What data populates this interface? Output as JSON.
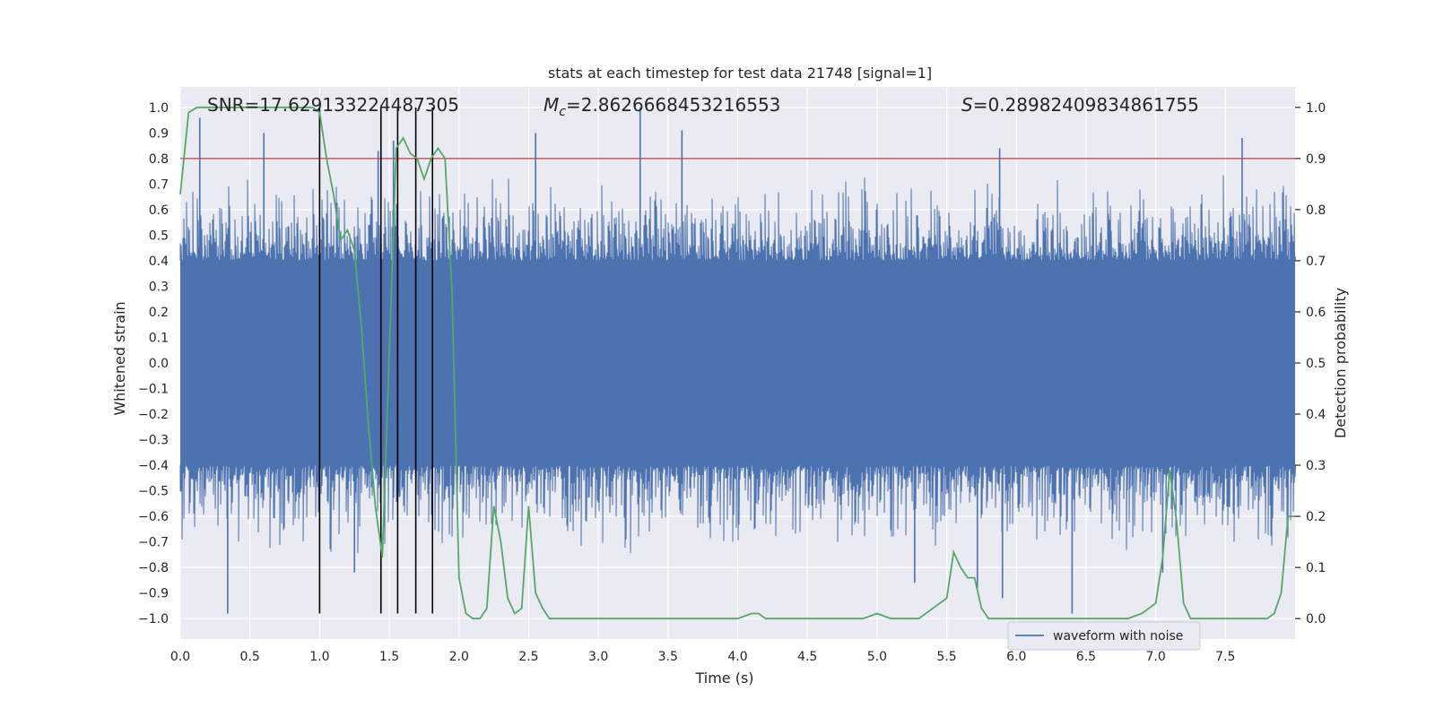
{
  "chart_data": {
    "type": "line",
    "title": "stats at each timestep for test data 21748 [signal=1]",
    "xlabel": "Time (s)",
    "ylabel_left": "Whitened strain",
    "ylabel_right": "Detection probability",
    "xlim": [
      0.0,
      8.0
    ],
    "ylim_left": [
      -1.08,
      1.08
    ],
    "ylim_right": [
      -0.04,
      1.04
    ],
    "x_ticks": [
      0.0,
      0.5,
      1.0,
      1.5,
      2.0,
      2.5,
      3.0,
      3.5,
      4.0,
      4.5,
      5.0,
      5.5,
      6.0,
      6.5,
      7.0,
      7.5
    ],
    "x_tick_labels": [
      "0.0",
      "0.5",
      "1.0",
      "1.5",
      "2.0",
      "2.5",
      "3.0",
      "3.5",
      "4.0",
      "4.5",
      "5.0",
      "5.5",
      "6.0",
      "6.5",
      "7.0",
      "7.5"
    ],
    "y_left_ticks": [
      1.0,
      0.9,
      0.8,
      0.7,
      0.6,
      0.5,
      0.4,
      0.3,
      0.2,
      0.1,
      0.0,
      -0.1,
      -0.2,
      -0.3,
      -0.4,
      -0.5,
      -0.6,
      -0.7,
      -0.8,
      -0.9,
      -1.0
    ],
    "y_left_tick_labels": [
      "1.0",
      "0.9",
      "0.8",
      "0.7",
      "0.6",
      "0.5",
      "0.4",
      "0.3",
      "0.2",
      "0.1",
      "0.0",
      "−0.1",
      "−0.2",
      "−0.3",
      "−0.4",
      "−0.5",
      "−0.6",
      "−0.7",
      "−0.8",
      "−0.9",
      "−1.0"
    ],
    "y_right_ticks": [
      1.0,
      0.9,
      0.8,
      0.7,
      0.6,
      0.5,
      0.4,
      0.3,
      0.2,
      0.1,
      0.0
    ],
    "y_right_tick_labels": [
      "1.0",
      "0.9",
      "0.8",
      "0.7",
      "0.6",
      "0.5",
      "0.4",
      "0.3",
      "0.2",
      "0.1",
      "0.0"
    ],
    "annotations": {
      "snr": "SNR=17.629133224487305",
      "mc_prefix": "M",
      "mc_sub": "c",
      "mc_value": "=2.8626668453216553",
      "s_prefix": "S",
      "s_value": "=0.28982409834861755"
    },
    "threshold_line": {
      "axis": "left",
      "y": 0.8,
      "color": "#c44e52"
    },
    "vertical_markers": [
      {
        "x": 1.0,
        "ymin": -0.98,
        "ymax": 1.0
      },
      {
        "x": 1.44,
        "ymin": -0.98,
        "ymax": 1.0
      },
      {
        "x": 1.56,
        "ymin": -0.98,
        "ymax": 1.0
      },
      {
        "x": 1.69,
        "ymin": -0.98,
        "ymax": 1.0
      },
      {
        "x": 1.81,
        "ymin": -0.98,
        "ymax": 1.0
      }
    ],
    "series": [
      {
        "name": "waveform with noise",
        "axis": "left",
        "color": "#4c72b0",
        "kind": "noise",
        "band": 0.4,
        "typical_peak": 0.62,
        "spikes": [
          {
            "x": 0.14,
            "y": 0.96
          },
          {
            "x": 0.6,
            "y": 0.9
          },
          {
            "x": 1.42,
            "y": 0.83
          },
          {
            "x": 1.53,
            "y": 0.87
          },
          {
            "x": 2.55,
            "y": 0.9
          },
          {
            "x": 3.3,
            "y": 1.0
          },
          {
            "x": 3.6,
            "y": 0.91
          },
          {
            "x": 5.88,
            "y": 0.84
          },
          {
            "x": 7.62,
            "y": 0.88
          },
          {
            "x": 0.34,
            "y": -0.98
          },
          {
            "x": 1.25,
            "y": -0.82
          },
          {
            "x": 5.27,
            "y": -0.86
          },
          {
            "x": 5.72,
            "y": -0.88
          },
          {
            "x": 5.9,
            "y": -0.92
          },
          {
            "x": 6.4,
            "y": -0.98
          },
          {
            "x": 7.05,
            "y": -0.82
          }
        ]
      },
      {
        "name": "detection probability",
        "axis": "right",
        "color": "#55a868",
        "x": [
          0.0,
          0.06,
          0.12,
          0.5,
          0.95,
          1.0,
          1.05,
          1.1,
          1.15,
          1.2,
          1.25,
          1.3,
          1.35,
          1.4,
          1.45,
          1.5,
          1.55,
          1.6,
          1.65,
          1.7,
          1.75,
          1.8,
          1.85,
          1.9,
          1.95,
          2.0,
          2.05,
          2.1,
          2.15,
          2.2,
          2.25,
          2.3,
          2.35,
          2.4,
          2.45,
          2.5,
          2.55,
          2.6,
          2.65,
          2.7,
          2.8,
          2.9,
          3.0,
          3.1,
          3.2,
          3.3,
          3.4,
          3.5,
          3.7,
          3.9,
          4.0,
          4.1,
          4.15,
          4.2,
          4.3,
          4.4,
          4.5,
          4.6,
          4.8,
          4.9,
          5.0,
          5.1,
          5.3,
          5.4,
          5.5,
          5.55,
          5.6,
          5.65,
          5.7,
          5.75,
          5.8,
          5.85,
          5.9,
          6.0,
          6.5,
          6.8,
          6.9,
          6.95,
          7.0,
          7.05,
          7.1,
          7.15,
          7.2,
          7.25,
          7.3,
          7.5,
          7.7,
          7.8,
          7.85,
          7.9,
          7.95,
          8.0
        ],
        "y": [
          0.83,
          0.99,
          1.0,
          1.0,
          1.0,
          0.99,
          0.9,
          0.83,
          0.74,
          0.76,
          0.72,
          0.57,
          0.38,
          0.22,
          0.12,
          0.52,
          0.92,
          0.94,
          0.91,
          0.9,
          0.86,
          0.9,
          0.92,
          0.9,
          0.64,
          0.08,
          0.01,
          0.0,
          0.0,
          0.02,
          0.22,
          0.15,
          0.04,
          0.01,
          0.02,
          0.22,
          0.05,
          0.02,
          0.0,
          0.0,
          0.0,
          0.0,
          0.0,
          0.0,
          0.0,
          0.0,
          0.0,
          0.0,
          0.0,
          0.0,
          0.0,
          0.01,
          0.01,
          0.0,
          0.0,
          0.0,
          0.0,
          0.0,
          0.0,
          0.0,
          0.01,
          0.0,
          0.0,
          0.02,
          0.04,
          0.13,
          0.1,
          0.08,
          0.08,
          0.02,
          0.0,
          0.0,
          0.0,
          0.0,
          0.0,
          0.0,
          0.01,
          0.02,
          0.03,
          0.12,
          0.29,
          0.19,
          0.03,
          0.0,
          0.0,
          0.0,
          0.0,
          0.0,
          0.01,
          0.05,
          0.2,
          0.2
        ]
      }
    ],
    "legend": {
      "location": "lower-right",
      "entries": [
        "waveform with noise"
      ]
    }
  }
}
